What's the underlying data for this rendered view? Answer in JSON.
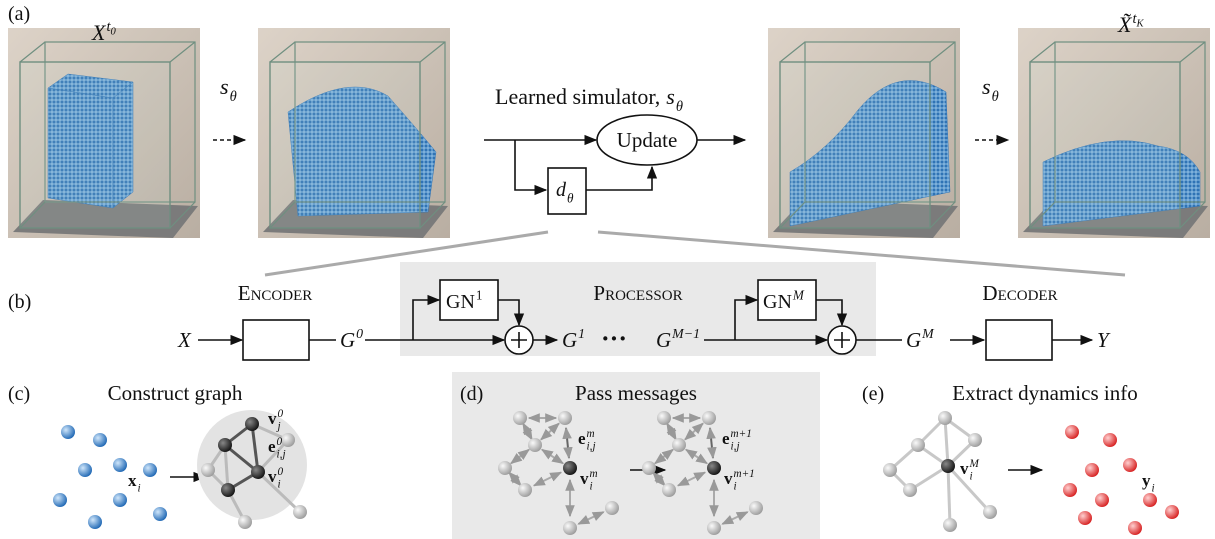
{
  "panel_a": {
    "label": "(a)",
    "input_state": {
      "base": "X",
      "sup": "t",
      "sup_sub": "0"
    },
    "output_state": {
      "base": "X̃",
      "sup": "t",
      "sup_sub": "K"
    },
    "step_operator": {
      "base": "s",
      "sub": "θ"
    },
    "simulator_label": "Learned simulator,",
    "update": "Update",
    "model": {
      "base": "d",
      "sub": "θ"
    }
  },
  "panel_b": {
    "label": "(b)",
    "encoder": "Encoder",
    "processor": "Processor",
    "decoder": "Decoder",
    "input": {
      "base": "X"
    },
    "latent_in": {
      "base": "G",
      "sup": "0"
    },
    "gn_first": {
      "base": "GN",
      "sup": "1"
    },
    "latent_first": {
      "base": "G",
      "sup": "1"
    },
    "ellipsis": "···",
    "latent_prev": {
      "base": "G",
      "sup": "M−1"
    },
    "gn_last": {
      "base": "GN",
      "sup": "M"
    },
    "latent_out": {
      "base": "G",
      "sup": "M"
    },
    "output": {
      "base": "Y"
    }
  },
  "panel_c": {
    "label": "(c)",
    "title": "Construct graph",
    "particle": {
      "base": "x",
      "sub": "i"
    },
    "neighbor_node": {
      "base": "v",
      "sup": "0",
      "sub": "j"
    },
    "edge": {
      "base": "e",
      "sup": "0",
      "sub": "i,j"
    },
    "node": {
      "base": "v",
      "sup": "0",
      "sub": "i"
    }
  },
  "panel_d": {
    "label": "(d)",
    "title": "Pass messages",
    "edge_before": {
      "base": "e",
      "sup": "m",
      "sub": "i,j"
    },
    "node_before": {
      "base": "v",
      "sup": "m",
      "sub": "i"
    },
    "edge_after": {
      "base": "e",
      "sup": "m+1",
      "sub": "i,j"
    },
    "node_after": {
      "base": "v",
      "sup": "m+1",
      "sub": "i"
    }
  },
  "panel_e": {
    "label": "(e)",
    "title": "Extract dynamics info",
    "node": {
      "base": "v",
      "sup": "M",
      "sub": "i"
    },
    "output": {
      "base": "y",
      "sub": "i"
    }
  }
}
